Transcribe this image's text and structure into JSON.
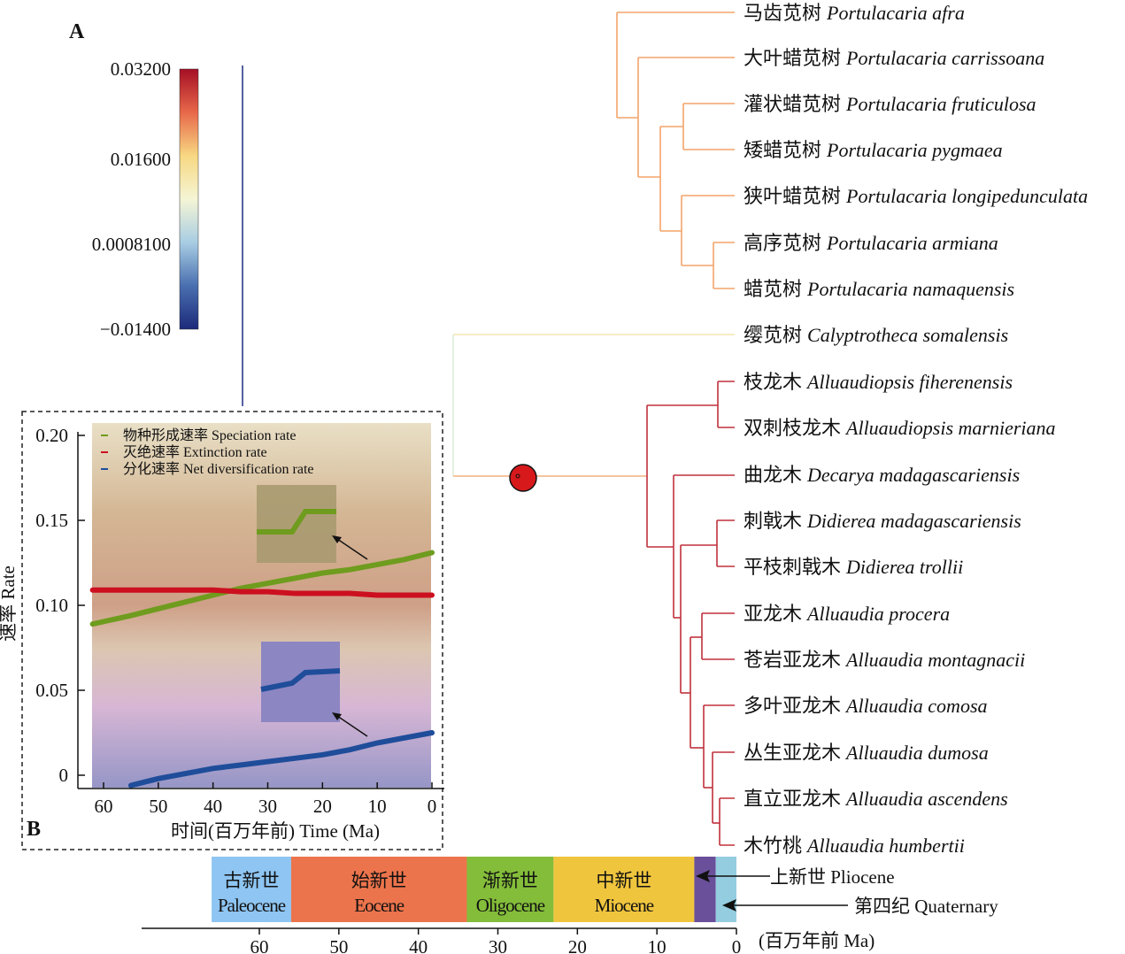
{
  "panels": {
    "a": "A",
    "b": "B"
  },
  "colorbar": {
    "ticks": [
      "0.03200",
      "0.01600",
      "0.0008100",
      "−0.01400"
    ],
    "colors": [
      "#a50f25",
      "#e8684a",
      "#f7d882",
      "#f5f5d5",
      "#a8cde3",
      "#4a6fb0",
      "#1c2a7a"
    ]
  },
  "tree": {
    "tips": [
      {
        "cn": "马齿苋树",
        "sci": "Portulacaria afra"
      },
      {
        "cn": "大叶蜡苋树",
        "sci": "Portulacaria carrissoana"
      },
      {
        "cn": "灌状蜡苋树",
        "sci": "Portulacaria fruticulosa"
      },
      {
        "cn": "矮蜡苋树",
        "sci": "Portulacaria pygmaea"
      },
      {
        "cn": "狭叶蜡苋树",
        "sci": "Portulacaria longipedunculata"
      },
      {
        "cn": "高序苋树",
        "sci": "Portulacaria armiana"
      },
      {
        "cn": "蜡苋树",
        "sci": "Portulacaria namaquensis"
      },
      {
        "cn": "缨苋树",
        "sci": "Calyptrotheca somalensis"
      },
      {
        "cn": "枝龙木",
        "sci": "Alluaudiopsis fiherenensis"
      },
      {
        "cn": "双刺枝龙木",
        "sci": "Alluaudiopsis marnieriana"
      },
      {
        "cn": "曲龙木",
        "sci": "Decarya madagascariensis"
      },
      {
        "cn": "刺戟木",
        "sci": "Didierea madagascariensis"
      },
      {
        "cn": "平枝刺戟木",
        "sci": "Didierea trollii"
      },
      {
        "cn": "亚龙木",
        "sci": "Alluaudia procera"
      },
      {
        "cn": "苍岩亚龙木",
        "sci": "Alluaudia montagnacii"
      },
      {
        "cn": "多叶亚龙木",
        "sci": "Alluaudia comosa"
      },
      {
        "cn": "丛生亚龙木",
        "sci": "Alluaudia dumosa"
      },
      {
        "cn": "直立亚龙木",
        "sci": "Alluaudia ascendens"
      },
      {
        "cn": "木竹桃",
        "sci": "Alluaudia humbertii"
      }
    ],
    "branch_colors": {
      "portulacaria": "#f3a46a",
      "didiereaceae": "#c0303c",
      "root": "#2b3a8a"
    },
    "shift_marker_color": "#d7191c"
  },
  "chart_data": {
    "type": "line",
    "xlabel": "时间(百万年前) Time (Ma)",
    "ylabel": "速率 Rate",
    "xlim": [
      63,
      0
    ],
    "ylim": [
      -0.009,
      0.205
    ],
    "xticks": [
      "60",
      "50",
      "40",
      "30",
      "20",
      "10",
      "0"
    ],
    "yticks": [
      "0.20",
      "0.15",
      "0.10",
      "0.05",
      "0"
    ],
    "legend_position": "top-left",
    "x": [
      62,
      55,
      50,
      45,
      40,
      35,
      30,
      25,
      20,
      15,
      10,
      5,
      0
    ],
    "series": [
      {
        "name": "物种形成速率 Speciation rate",
        "color": "#6f9c1e",
        "values": [
          0.089,
          0.094,
          0.098,
          0.102,
          0.106,
          0.11,
          0.113,
          0.116,
          0.119,
          0.121,
          0.124,
          0.127,
          0.131
        ]
      },
      {
        "name": "灭绝速率 Extinction rate",
        "color": "#cc1020",
        "values": [
          0.109,
          0.109,
          0.109,
          0.109,
          0.109,
          0.108,
          0.108,
          0.107,
          0.107,
          0.107,
          0.106,
          0.106,
          0.106
        ]
      },
      {
        "name": "分化速率 Net diversification rate",
        "color": "#1f4d9a",
        "values": [
          -0.01,
          -0.006,
          -0.002,
          0.001,
          0.004,
          0.006,
          0.008,
          0.01,
          0.012,
          0.015,
          0.019,
          0.022,
          0.025
        ]
      }
    ]
  },
  "timescale": {
    "unit": "(百万年前 Ma)",
    "ticks": [
      "60",
      "50",
      "40",
      "30",
      "20",
      "10",
      "0"
    ],
    "epochs": [
      {
        "cn": "古新世",
        "en": "Paleocene",
        "start": 66,
        "end": 56,
        "color": "#8ec5f2"
      },
      {
        "cn": "始新世",
        "en": "Eocene",
        "start": 56,
        "end": 33.9,
        "color": "#ec744c"
      },
      {
        "cn": "渐新世",
        "en": "Oligocene",
        "start": 33.9,
        "end": 23,
        "color": "#84bd3a"
      },
      {
        "cn": "中新世",
        "en": "Miocene",
        "start": 23,
        "end": 5.3,
        "color": "#f0c53e"
      },
      {
        "cn": "",
        "en": "",
        "start": 5.3,
        "end": 2.6,
        "color": "#6a4f9a"
      },
      {
        "cn": "",
        "en": "",
        "start": 2.6,
        "end": 0,
        "color": "#94cde0"
      }
    ],
    "pliocene_label": "上新世 Pliocene",
    "quaternary_label": "第四纪 Quaternary"
  }
}
